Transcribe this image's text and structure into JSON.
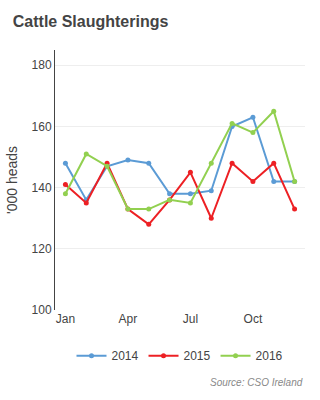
{
  "chart_data": {
    "type": "line",
    "title": "Cattle Slaughterings",
    "ylabel": "'000 heads",
    "categories": [
      "Jan",
      null,
      null,
      "Apr",
      null,
      null,
      "Jul",
      null,
      null,
      "Oct",
      null,
      null
    ],
    "series": [
      {
        "name": "2014",
        "color": "#5b9bd5",
        "values": [
          148,
          136,
          147,
          149,
          148,
          138,
          138,
          139,
          160,
          163,
          142,
          142
        ]
      },
      {
        "name": "2015",
        "color": "#ed2024",
        "values": [
          141,
          135,
          148,
          133,
          128,
          136,
          145,
          130,
          148,
          142,
          148,
          133
        ]
      },
      {
        "name": "2016",
        "color": "#92d050",
        "values": [
          138,
          151,
          147,
          133,
          133,
          136,
          135,
          148,
          161,
          158,
          165,
          142
        ]
      }
    ],
    "marker": "circle",
    "ylim": [
      100,
      185
    ],
    "yticks": [
      100,
      120,
      140,
      160,
      180
    ],
    "grid": true,
    "legend": "bottom",
    "annotations": [
      "Source: CSO Ireland"
    ]
  }
}
